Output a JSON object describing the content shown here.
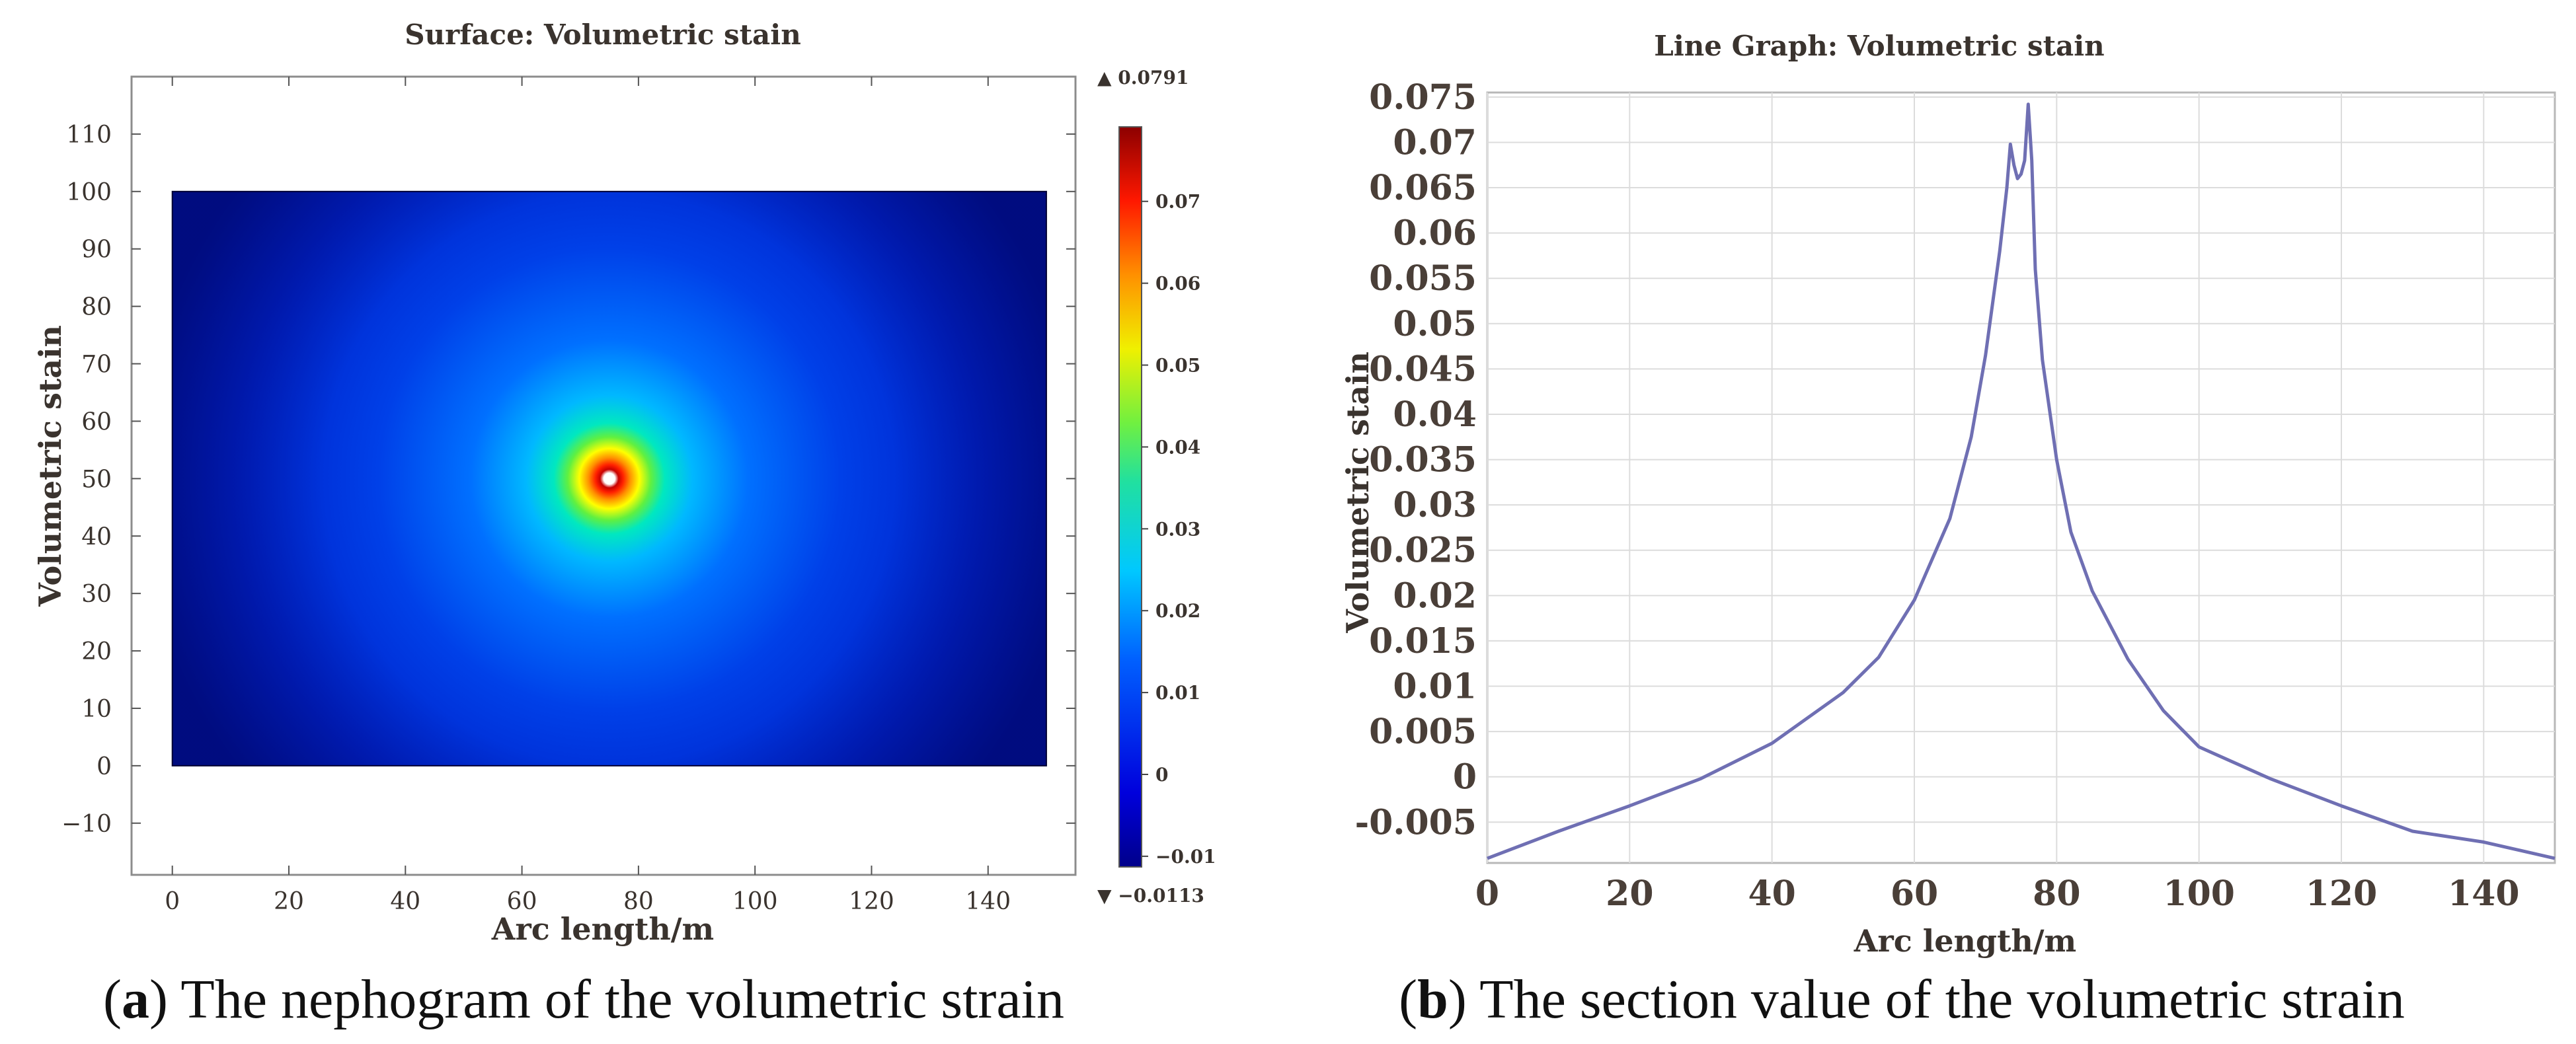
{
  "figure": {
    "caption_a_letter": "a",
    "caption_a_text": ") The nephogram of the volumetric strain",
    "caption_b_letter": "b",
    "caption_b_text": ") The section value of the volumetric strain"
  },
  "colors": {
    "line": "#6f6fb3",
    "grid": "#dcdcdc",
    "frame": "#b8b8b8",
    "text": "#4a3f38"
  },
  "chart_data": [
    {
      "type": "heatmap",
      "title": "Surface: Volumetric stain",
      "xlabel": "Arc length/m",
      "ylabel": "Volumetric stain",
      "xlim": [
        -7,
        155
      ],
      "ylim": [
        -19,
        120
      ],
      "xticks": [
        0,
        20,
        40,
        60,
        80,
        100,
        120,
        140
      ],
      "yticks": [
        -10,
        0,
        10,
        20,
        30,
        40,
        50,
        60,
        70,
        80,
        90,
        100,
        110
      ],
      "domain": {
        "x": [
          0,
          150
        ],
        "y": [
          0,
          100
        ]
      },
      "source_point": [
        75,
        50
      ],
      "colorbar": {
        "max_label": "▲ 0.0791",
        "min_label": "▼ −0.0113",
        "max": 0.0791,
        "min": -0.0113,
        "ticks": [
          0.07,
          0.06,
          0.05,
          0.04,
          0.03,
          0.02,
          0.01,
          0,
          -0.01
        ],
        "tick_labels": [
          "0.07",
          "0.06",
          "0.05",
          "0.04",
          "0.03",
          "0.02",
          "0.01",
          "0",
          "−0.01"
        ]
      }
    },
    {
      "type": "line",
      "title": "Line Graph: Volumetric stain",
      "xlabel": "Arc length/m",
      "ylabel": "Volumetric stain",
      "xlim": [
        0,
        150
      ],
      "ylim": [
        -0.0095,
        0.0755
      ],
      "xticks": [
        0,
        20,
        40,
        60,
        80,
        100,
        120,
        140
      ],
      "yticks": [
        -0.005,
        0,
        0.005,
        0.01,
        0.015,
        0.02,
        0.025,
        0.03,
        0.035,
        0.04,
        0.045,
        0.05,
        0.055,
        0.06,
        0.065,
        0.07,
        0.075
      ],
      "ytick_labels": [
        "-0.005",
        "0",
        "0.005",
        "0.01",
        "0.015",
        "0.02",
        "0.025",
        "0.03",
        "0.035",
        "0.04",
        "0.045",
        "0.05",
        "0.055",
        "0.06",
        "0.065",
        "0.07",
        "0.075"
      ],
      "series": [
        {
          "name": "Volumetric stain",
          "x": [
            0,
            10,
            20,
            30,
            40,
            50,
            55,
            60,
            65,
            68,
            70,
            72,
            73,
            73.5,
            74,
            74.5,
            75,
            75.5,
            76,
            76.5,
            77,
            78,
            80,
            82,
            85,
            90,
            95,
            100,
            110,
            120,
            130,
            140,
            150
          ],
          "values": [
            -0.009,
            -0.006,
            -0.0032,
            -0.0002,
            0.0037,
            0.0093,
            0.0132,
            0.0195,
            0.0285,
            0.0375,
            0.0465,
            0.058,
            0.065,
            0.0698,
            0.0675,
            0.066,
            0.0665,
            0.068,
            0.0742,
            0.068,
            0.056,
            0.046,
            0.035,
            0.027,
            0.0205,
            0.013,
            0.0073,
            0.0033,
            -0.0002,
            -0.0032,
            -0.006,
            -0.0072,
            -0.009
          ]
        }
      ]
    }
  ]
}
